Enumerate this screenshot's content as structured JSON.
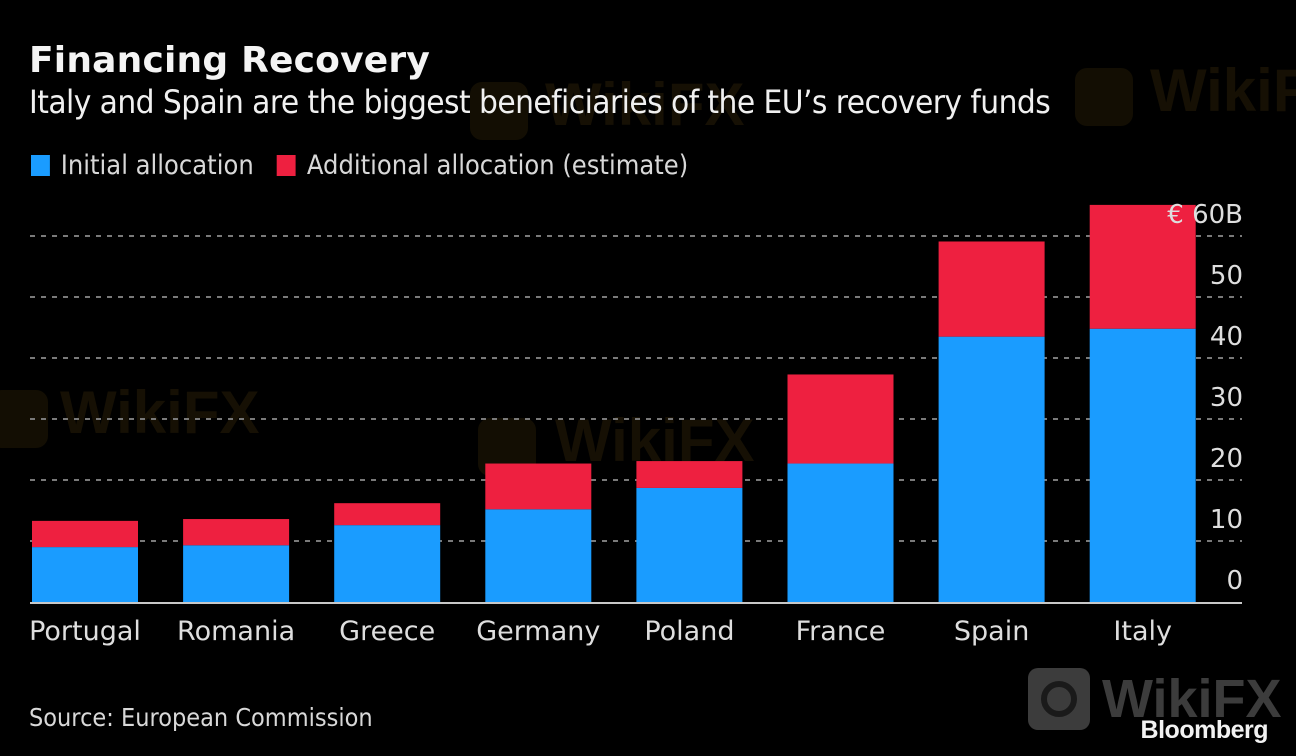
{
  "header": {
    "title": "Financing Recovery",
    "subtitle": "Italy and Spain are the biggest beneficiaries of the EU’s recovery funds"
  },
  "legend": [
    {
      "label": "Initial allocation",
      "color": "#1a9cff"
    },
    {
      "label": "Additional allocation (estimate)",
      "color": "#ee2040"
    }
  ],
  "footer": {
    "source": "Source: European Commission",
    "brand": "Bloomberg",
    "watermark": "WikiFX"
  },
  "chart_data": {
    "type": "bar",
    "stacked": true,
    "title": "Financing Recovery",
    "subtitle": "Italy and Spain are the biggest beneficiaries of the EU’s recovery funds",
    "xlabel": "",
    "ylabel": "",
    "unit": "€ billions",
    "categories": [
      "Portugal",
      "Romania",
      "Greece",
      "Germany",
      "Poland",
      "France",
      "Spain",
      "Italy"
    ],
    "series": [
      {
        "name": "Initial allocation",
        "color": "#1a9cff",
        "values": [
          9.0,
          9.3,
          12.6,
          15.2,
          18.7,
          22.7,
          43.5,
          44.8
        ]
      },
      {
        "name": "Additional allocation (estimate)",
        "color": "#ee2040",
        "values": [
          4.3,
          4.3,
          3.6,
          7.5,
          4.4,
          14.6,
          15.6,
          20.3
        ]
      }
    ],
    "ylim": [
      0,
      60
    ],
    "yticks": [
      0,
      10,
      20,
      30,
      40,
      50,
      60
    ],
    "ytick_labels": [
      "0",
      "10",
      "20",
      "30",
      "40",
      "50",
      "€ 60B"
    ],
    "y_axis_side": "right",
    "grid": true,
    "legend_position": "top-left",
    "source": "Source: European Commission"
  }
}
